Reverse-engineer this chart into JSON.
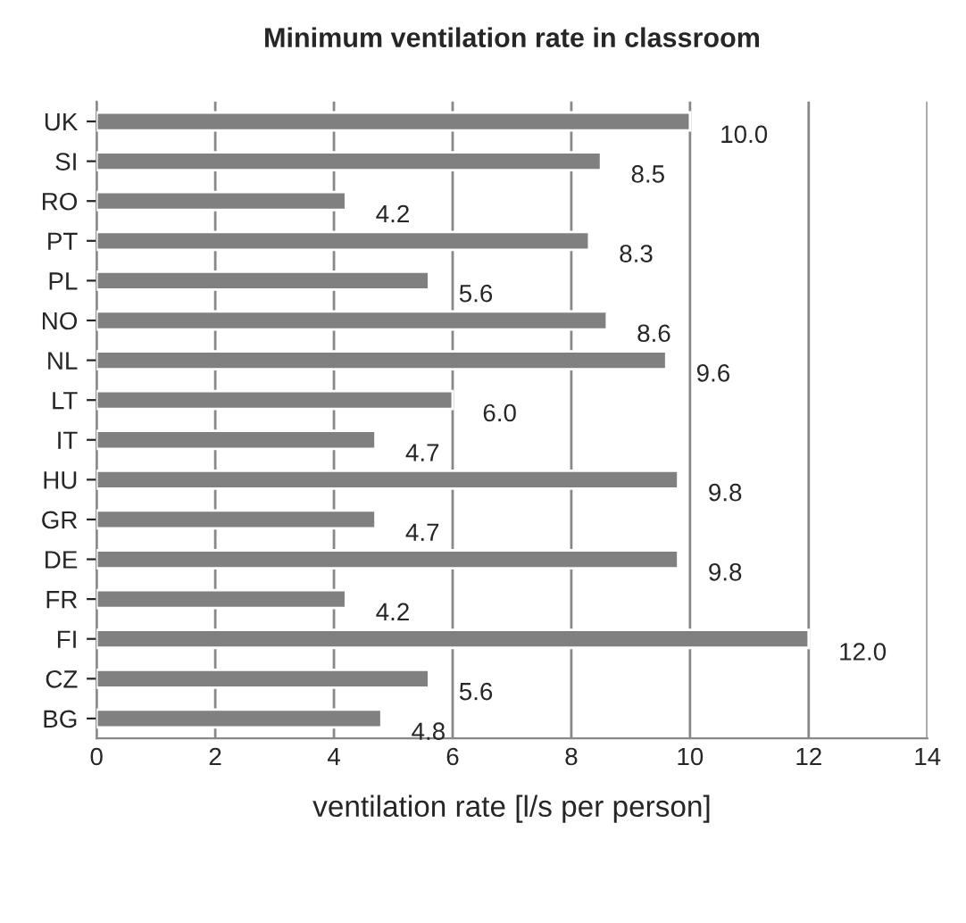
{
  "chart_data": {
    "type": "bar",
    "orientation": "horizontal",
    "title": "Minimum ventilation rate in classroom",
    "xlabel": "ventilation rate [l/s per person]",
    "categories": [
      "UK",
      "SI",
      "RO",
      "PT",
      "PL",
      "NO",
      "NL",
      "LT",
      "IT",
      "HU",
      "GR",
      "DE",
      "FR",
      "FI",
      "CZ",
      "BG"
    ],
    "values": [
      10.0,
      8.5,
      4.2,
      8.3,
      5.6,
      8.6,
      9.6,
      6.0,
      4.7,
      9.8,
      4.7,
      9.8,
      4.2,
      12.0,
      5.6,
      4.8
    ],
    "value_labels": [
      "10.0",
      "8.5",
      "4.2",
      "8.3",
      "5.6",
      "8.6",
      "9.6",
      "6.0",
      "4.7",
      "9.8",
      "4.7",
      "9.8",
      "4.2",
      "12.0",
      "5.6",
      "4.8"
    ],
    "color": "#808080",
    "xlim": [
      0,
      14
    ],
    "xticks": [
      0,
      2,
      4,
      6,
      8,
      10,
      12,
      14
    ],
    "grid": "x",
    "legend": false
  }
}
